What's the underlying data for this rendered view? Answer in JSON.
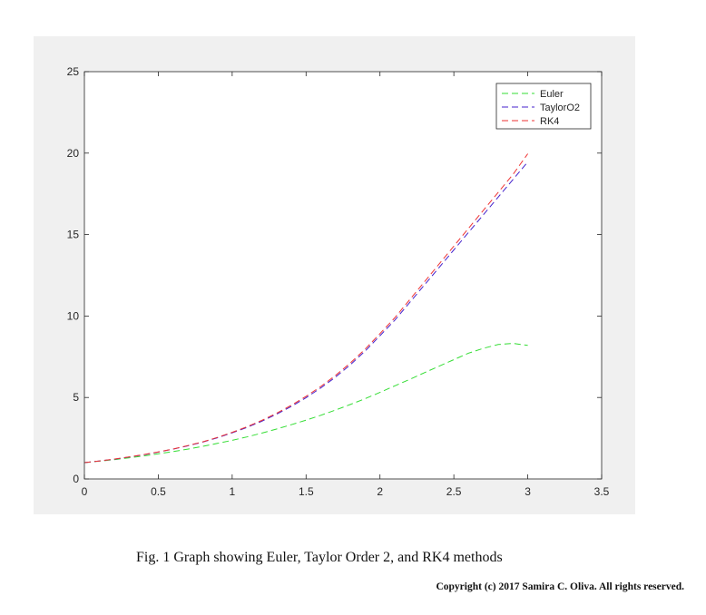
{
  "caption": "Fig. 1 Graph showing Euler, Taylor Order 2, and RK4 methods",
  "copyright": "Copyright (c) 2017 Samira C. Oliva. All rights reserved.",
  "chart_data": {
    "type": "line",
    "title": "",
    "xlabel": "",
    "ylabel": "",
    "xlim": [
      0,
      3.5
    ],
    "ylim": [
      0,
      25
    ],
    "x_ticks": [
      0,
      0.5,
      1,
      1.5,
      2,
      2.5,
      3,
      3.5
    ],
    "x_tick_labels": [
      "0",
      "0.5",
      "1",
      "1.5",
      "2",
      "2.5",
      "3",
      "3.5"
    ],
    "y_ticks": [
      0,
      5,
      10,
      15,
      20,
      25
    ],
    "y_tick_labels": [
      "0",
      "5",
      "10",
      "15",
      "20",
      "25"
    ],
    "grid": false,
    "legend_position": "top-right",
    "x": [
      0,
      0.1,
      0.2,
      0.3,
      0.4,
      0.5,
      0.6,
      0.7,
      0.8,
      0.9,
      1.0,
      1.1,
      1.2,
      1.3,
      1.4,
      1.5,
      1.6,
      1.7,
      1.8,
      1.9,
      2.0,
      2.1,
      2.2,
      2.3,
      2.4,
      2.5,
      2.6,
      2.7,
      2.8,
      2.9,
      3.0
    ],
    "series": [
      {
        "name": "Euler",
        "color": "#33dd33",
        "values": [
          1.0,
          1.09,
          1.18,
          1.29,
          1.41,
          1.54,
          1.68,
          1.83,
          2.0,
          2.18,
          2.37,
          2.58,
          2.81,
          3.06,
          3.33,
          3.61,
          3.91,
          4.23,
          4.57,
          4.93,
          5.31,
          5.71,
          6.11,
          6.52,
          6.92,
          7.32,
          7.72,
          8.02,
          8.25,
          8.32,
          8.2
        ]
      },
      {
        "name": "TaylorO2",
        "color": "#4422cc",
        "values": [
          1.0,
          1.1,
          1.21,
          1.34,
          1.48,
          1.65,
          1.83,
          2.03,
          2.26,
          2.53,
          2.83,
          3.16,
          3.54,
          3.97,
          4.45,
          4.99,
          5.59,
          6.26,
          7.01,
          7.85,
          8.79,
          9.74,
          10.82,
          11.9,
          12.98,
          14.06,
          15.14,
          16.22,
          17.3,
          18.38,
          19.46
        ]
      },
      {
        "name": "RK4",
        "color": "#ee3333",
        "values": [
          1.0,
          1.1,
          1.22,
          1.35,
          1.49,
          1.66,
          1.84,
          2.05,
          2.28,
          2.55,
          2.86,
          3.2,
          3.59,
          4.03,
          4.52,
          5.07,
          5.68,
          6.36,
          7.12,
          7.97,
          8.92,
          9.89,
          10.99,
          12.09,
          13.19,
          14.29,
          15.39,
          16.49,
          17.59,
          18.69,
          19.96
        ]
      }
    ]
  }
}
